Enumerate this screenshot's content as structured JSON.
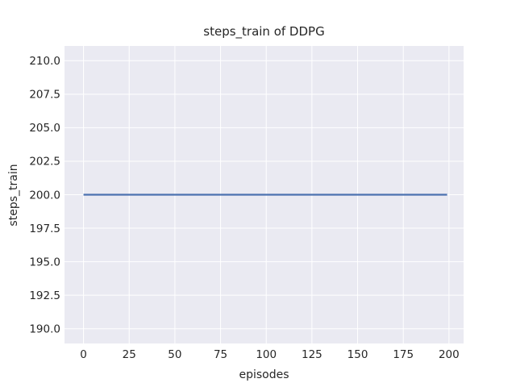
{
  "chart_data": {
    "type": "line",
    "title": "steps_train of DDPG",
    "xlabel": "episodes",
    "ylabel": "steps_train",
    "xlim": [
      -10.4,
      208.0
    ],
    "ylim": [
      188.9,
      211.1
    ],
    "xticks": [
      0,
      25,
      50,
      75,
      100,
      125,
      150,
      175,
      200
    ],
    "xtick_labels": [
      "0",
      "25",
      "50",
      "75",
      "100",
      "125",
      "150",
      "175",
      "200"
    ],
    "yticks": [
      190.0,
      192.5,
      195.0,
      197.5,
      200.0,
      202.5,
      205.0,
      207.5,
      210.0
    ],
    "ytick_labels": [
      "190.0",
      "192.5",
      "195.0",
      "197.5",
      "200.0",
      "202.5",
      "205.0",
      "207.5",
      "210.0"
    ],
    "grid": true,
    "legend": false,
    "style": {
      "plot_background": "#eaeaf2",
      "grid_color": "#ffffff",
      "text_color": "#262626",
      "line_color": "#4c72b0"
    },
    "series": [
      {
        "name": "steps_train",
        "color": "#4c72b0",
        "x": [
          0,
          199
        ],
        "y": [
          200,
          200
        ]
      }
    ]
  }
}
